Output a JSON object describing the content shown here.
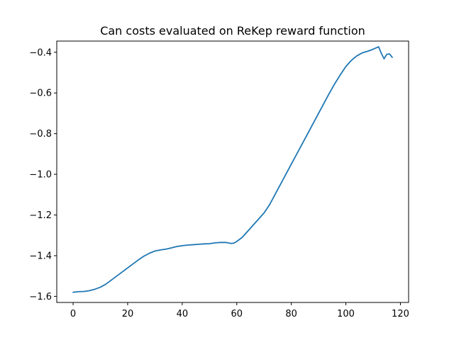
{
  "chart_data": {
    "type": "line",
    "title": "Can costs evaluated on ReKep reward function",
    "xlabel": "",
    "ylabel": "",
    "xlim": [
      -6,
      123
    ],
    "ylim": [
      -1.63,
      -0.345
    ],
    "x_ticks": [
      0,
      20,
      40,
      60,
      80,
      100,
      120
    ],
    "y_ticks": [
      -1.6,
      -1.4,
      -1.2,
      -1.0,
      -0.8,
      -0.6,
      -0.4
    ],
    "x_tick_labels": [
      "0",
      "20",
      "40",
      "60",
      "80",
      "100",
      "120"
    ],
    "y_tick_labels": [
      "−1.6",
      "−1.4",
      "−1.2",
      "−1.0",
      "−0.8",
      "−0.6",
      "−0.4"
    ],
    "grid": false,
    "series": [
      {
        "color": "#1f77b4",
        "x": [
          0,
          2,
          4,
          6,
          8,
          10,
          12,
          14,
          16,
          18,
          20,
          22,
          24,
          26,
          28,
          30,
          32,
          34,
          36,
          38,
          40,
          42,
          44,
          46,
          48,
          50,
          52,
          54,
          56,
          58,
          59,
          60,
          62,
          64,
          66,
          68,
          70,
          72,
          74,
          76,
          78,
          80,
          82,
          84,
          86,
          88,
          90,
          92,
          94,
          96,
          98,
          100,
          102,
          104,
          106,
          108,
          110,
          112,
          113,
          114,
          115,
          116,
          117
        ],
        "y": [
          -1.58,
          -1.577,
          -1.576,
          -1.572,
          -1.565,
          -1.555,
          -1.54,
          -1.52,
          -1.5,
          -1.48,
          -1.46,
          -1.44,
          -1.42,
          -1.402,
          -1.388,
          -1.377,
          -1.372,
          -1.368,
          -1.362,
          -1.355,
          -1.351,
          -1.348,
          -1.346,
          -1.344,
          -1.342,
          -1.341,
          -1.337,
          -1.335,
          -1.335,
          -1.34,
          -1.338,
          -1.33,
          -1.31,
          -1.28,
          -1.25,
          -1.22,
          -1.19,
          -1.15,
          -1.1,
          -1.05,
          -1.0,
          -0.95,
          -0.9,
          -0.85,
          -0.8,
          -0.75,
          -0.7,
          -0.65,
          -0.6,
          -0.553,
          -0.51,
          -0.47,
          -0.44,
          -0.418,
          -0.403,
          -0.395,
          -0.385,
          -0.373,
          -0.405,
          -0.432,
          -0.41,
          -0.408,
          -0.425
        ]
      }
    ]
  }
}
